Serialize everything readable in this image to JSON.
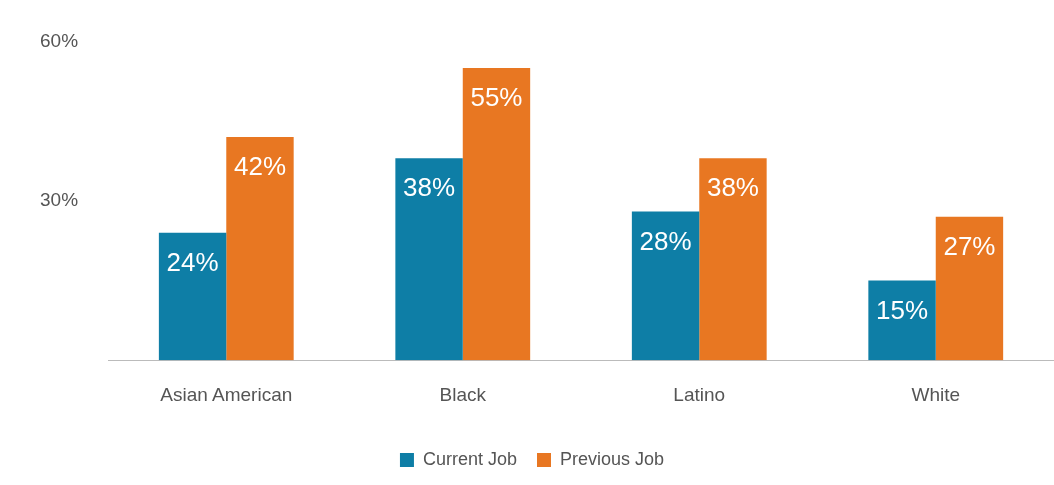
{
  "chart_data": {
    "type": "bar",
    "categories": [
      "Asian American",
      "Black",
      "Latino",
      "White"
    ],
    "series": [
      {
        "name": "Current Job",
        "color": "#0e7ea6",
        "values": [
          24,
          38,
          28,
          15
        ],
        "value_labels": [
          "24%",
          "38%",
          "28%",
          "15%"
        ]
      },
      {
        "name": "Previous Job",
        "color": "#e87722",
        "values": [
          42,
          55,
          38,
          27
        ],
        "value_labels": [
          "42%",
          "55%",
          "38%",
          "27%"
        ]
      }
    ],
    "ylim": [
      0,
      60
    ],
    "yticks": [
      {
        "value": 0,
        "label": null
      },
      {
        "value": 30,
        "label": "30%"
      },
      {
        "value": 60,
        "label": "60%"
      }
    ],
    "grid": false,
    "legend": "bottom"
  }
}
